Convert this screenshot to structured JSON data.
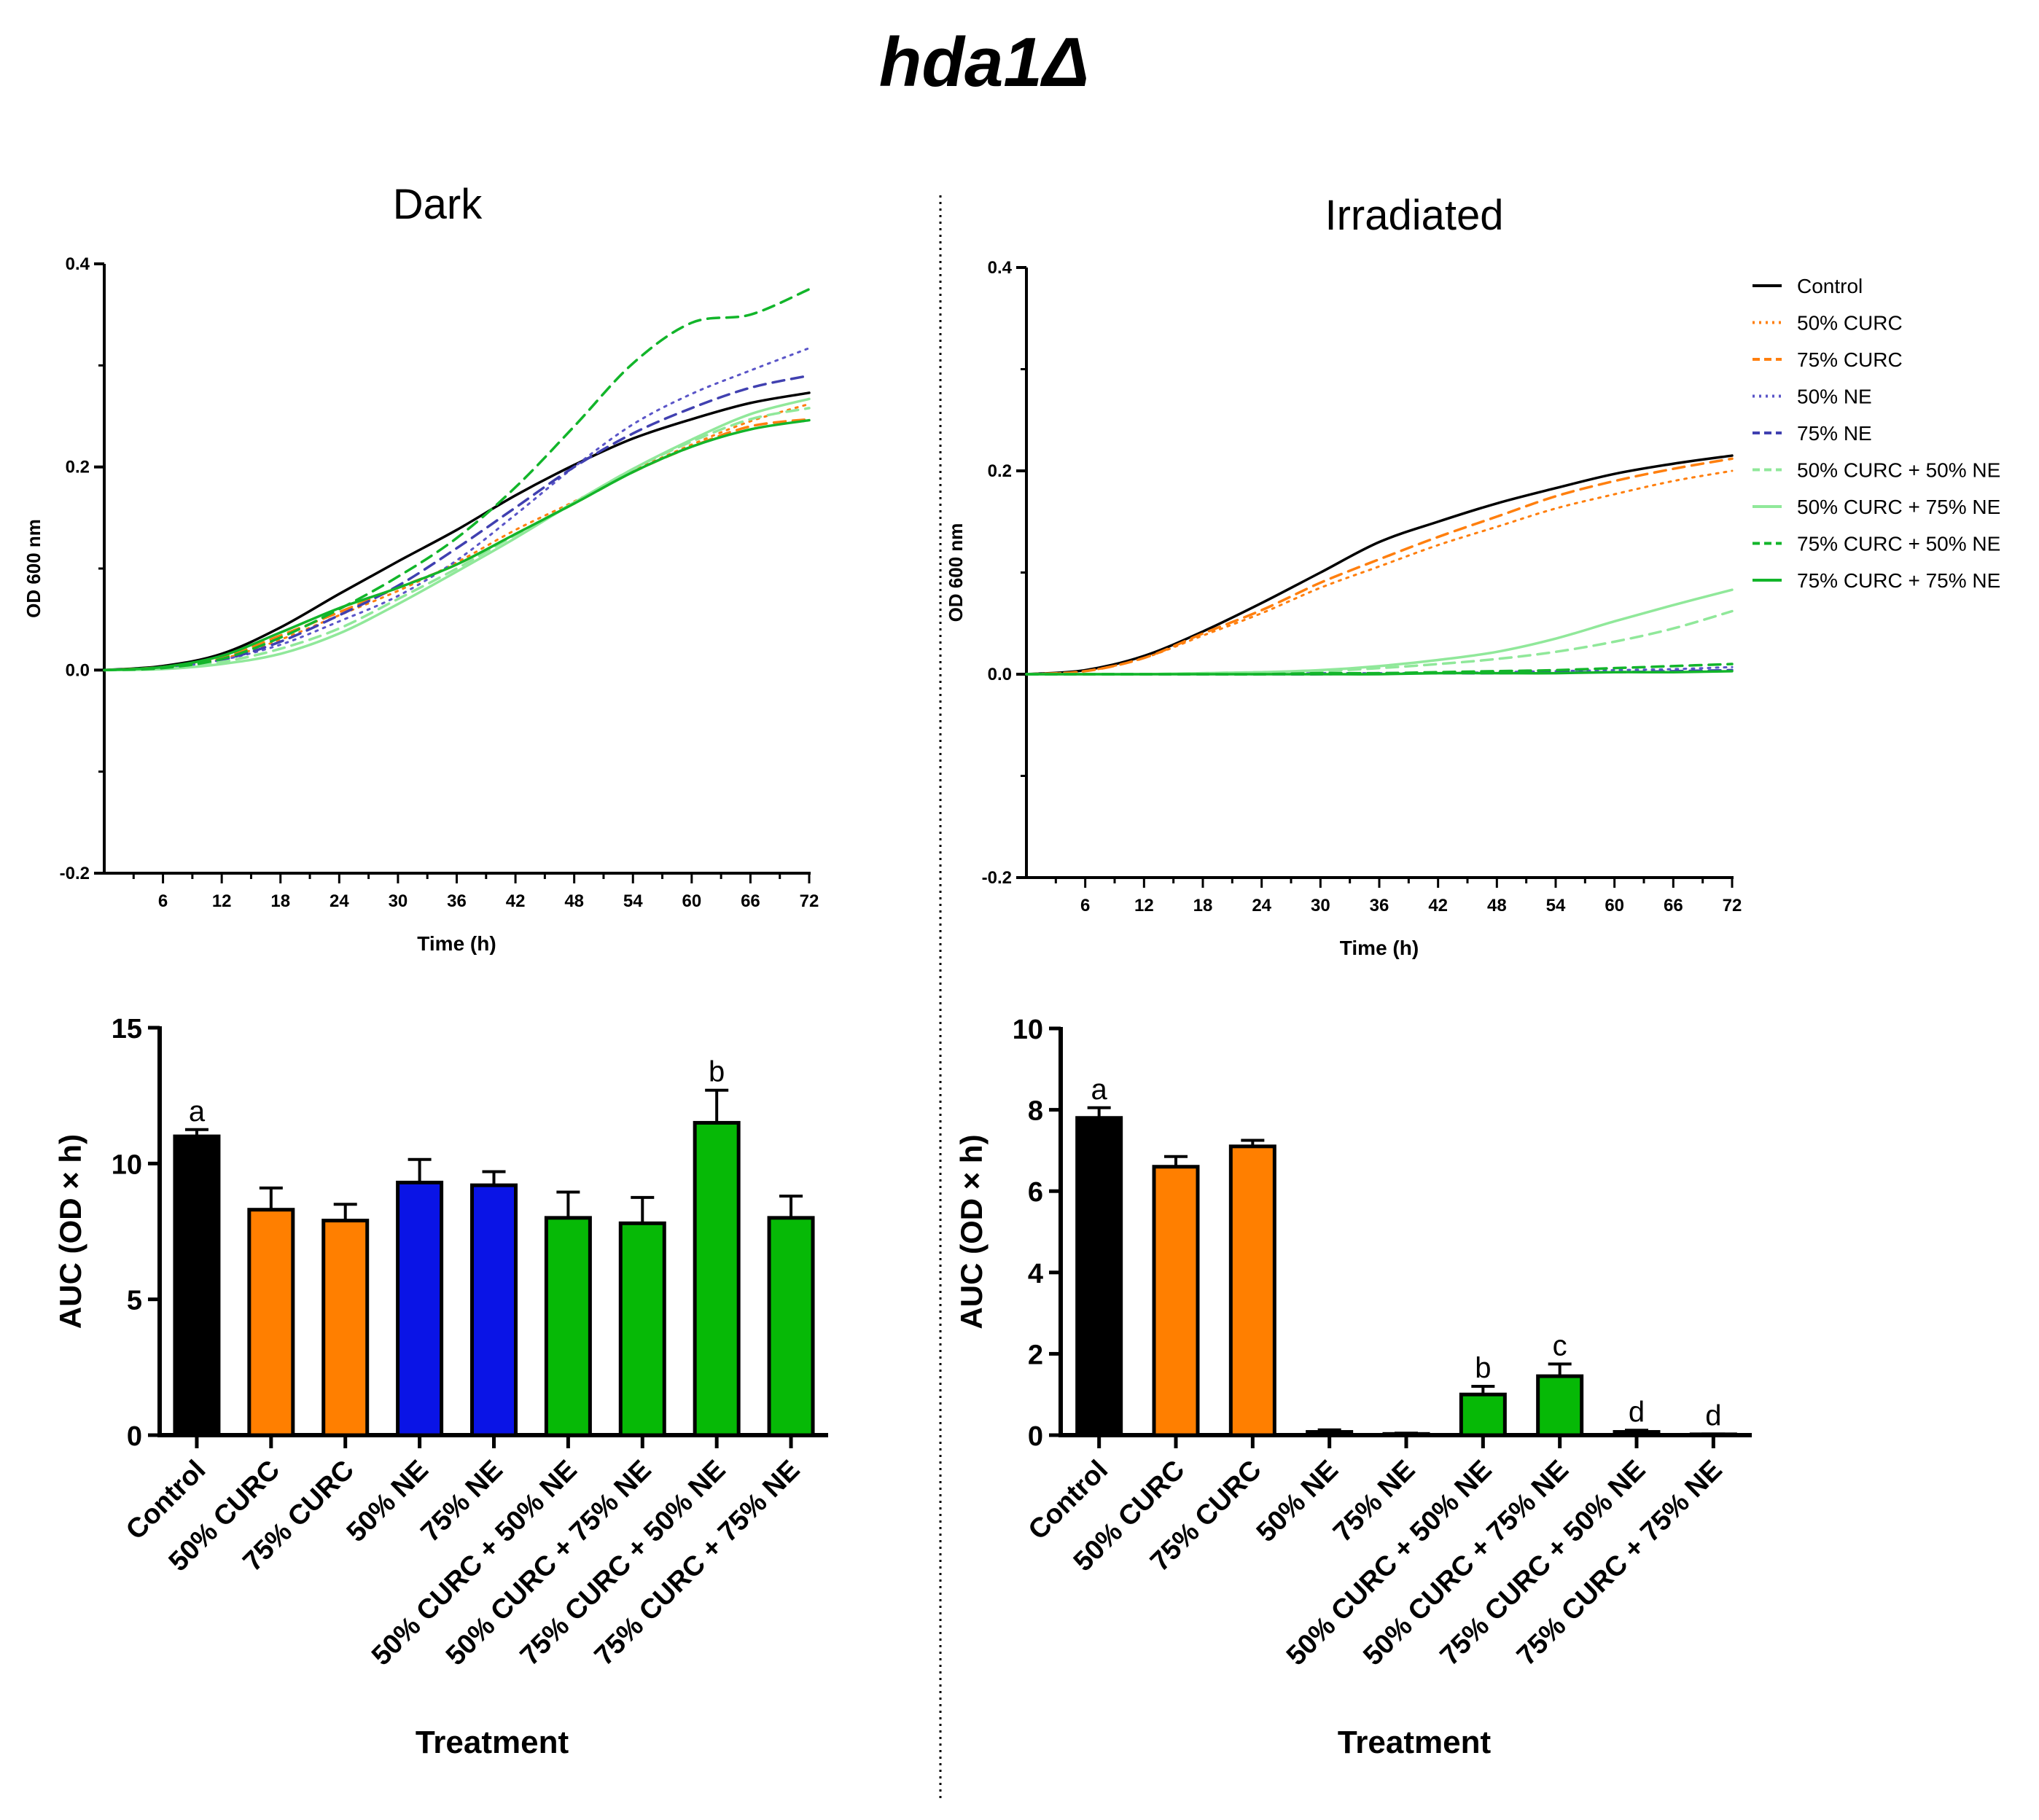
{
  "figure_title": "hda1Δ",
  "colors": {
    "control": "#000000",
    "curc50": "#ff7f0e",
    "curc75": "#ff7f0e",
    "ne50": "#5a55c8",
    "ne75": "#4040b0",
    "c50ne50": "#90e89a",
    "c50ne75": "#90e89a",
    "c75ne50": "#12b52a",
    "c75ne75": "#12b52a",
    "bar_control": "#000000",
    "bar_curc": "#ff7f00",
    "bar_ne": "#0a14e6",
    "bar_combo": "#06b906"
  },
  "legend": [
    "Control",
    "50% CURC",
    "75% CURC",
    "50% NE",
    "75% NE",
    "50% CURC + 50% NE",
    "50% CURC + 75% NE",
    "75% CURC + 50% NE",
    "75% CURC + 75% NE"
  ],
  "chart_data": [
    {
      "id": "dark_curves",
      "type": "line",
      "title": "Dark",
      "xlabel": "Time (h)",
      "ylabel": "OD 600 nm",
      "xlim": [
        0,
        72
      ],
      "ylim": [
        -0.2,
        0.4
      ],
      "xticks": [
        "6",
        "12",
        "18",
        "24",
        "30",
        "36",
        "42",
        "48",
        "54",
        "60",
        "66",
        "72"
      ],
      "yticks": [
        "-0.2",
        "0.0",
        "0.2",
        "0.4"
      ],
      "x": [
        0,
        6,
        12,
        18,
        24,
        30,
        36,
        42,
        48,
        54,
        60,
        66,
        72
      ],
      "series": [
        {
          "name": "Control",
          "style": "solid",
          "values": [
            0,
            0.004,
            0.016,
            0.042,
            0.075,
            0.107,
            0.138,
            0.172,
            0.202,
            0.228,
            0.247,
            0.263,
            0.273
          ]
        },
        {
          "name": "50% CURC",
          "style": "dotted",
          "values": [
            0,
            0.003,
            0.011,
            0.03,
            0.054,
            0.078,
            0.106,
            0.138,
            0.166,
            0.196,
            0.222,
            0.245,
            0.262
          ]
        },
        {
          "name": "75% CURC",
          "style": "dashed",
          "values": [
            0,
            0.003,
            0.012,
            0.034,
            0.057,
            0.081,
            0.104,
            0.134,
            0.164,
            0.195,
            0.22,
            0.24,
            0.247
          ]
        },
        {
          "name": "50% NE",
          "style": "dotted",
          "values": [
            0,
            0.002,
            0.01,
            0.025,
            0.048,
            0.073,
            0.108,
            0.153,
            0.2,
            0.242,
            0.272,
            0.295,
            0.317
          ]
        },
        {
          "name": "75% NE",
          "style": "dashed",
          "values": [
            0,
            0.002,
            0.01,
            0.028,
            0.054,
            0.083,
            0.12,
            0.16,
            0.2,
            0.233,
            0.258,
            0.278,
            0.29
          ]
        },
        {
          "name": "50% CURC + 50% NE",
          "style": "dashed",
          "values": [
            0,
            0.002,
            0.008,
            0.021,
            0.041,
            0.07,
            0.1,
            0.133,
            0.165,
            0.198,
            0.225,
            0.247,
            0.258
          ]
        },
        {
          "name": "50% CURC + 75% NE",
          "style": "solid",
          "values": [
            0,
            0.001,
            0.006,
            0.016,
            0.036,
            0.065,
            0.097,
            0.13,
            0.165,
            0.198,
            0.227,
            0.252,
            0.267
          ]
        },
        {
          "name": "75% CURC + 50% NE",
          "style": "dashed",
          "values": [
            0,
            0.002,
            0.011,
            0.032,
            0.06,
            0.092,
            0.13,
            0.18,
            0.24,
            0.302,
            0.342,
            0.35,
            0.375
          ]
        },
        {
          "name": "75% CURC + 75% NE",
          "style": "solid",
          "values": [
            0,
            0.003,
            0.014,
            0.037,
            0.061,
            0.081,
            0.104,
            0.134,
            0.164,
            0.195,
            0.22,
            0.237,
            0.246
          ]
        }
      ]
    },
    {
      "id": "irr_curves",
      "type": "line",
      "title": "Irradiated",
      "xlabel": "Time (h)",
      "ylabel": "OD 600 nm",
      "xlim": [
        0,
        72
      ],
      "ylim": [
        -0.2,
        0.4
      ],
      "xticks": [
        "6",
        "12",
        "18",
        "24",
        "30",
        "36",
        "42",
        "48",
        "54",
        "60",
        "66",
        "72"
      ],
      "yticks": [
        "-0.2",
        "0.0",
        "0.2",
        "0.4"
      ],
      "x": [
        0,
        6,
        12,
        18,
        24,
        30,
        36,
        42,
        48,
        54,
        60,
        66,
        72
      ],
      "series": [
        {
          "name": "Control",
          "style": "solid",
          "values": [
            0,
            0.004,
            0.018,
            0.042,
            0.07,
            0.1,
            0.13,
            0.15,
            0.168,
            0.183,
            0.197,
            0.207,
            0.215
          ]
        },
        {
          "name": "50% CURC",
          "style": "dotted",
          "values": [
            0,
            0.003,
            0.016,
            0.038,
            0.06,
            0.085,
            0.106,
            0.127,
            0.145,
            0.163,
            0.177,
            0.19,
            0.2
          ]
        },
        {
          "name": "75% CURC",
          "style": "dashed",
          "values": [
            0,
            0.003,
            0.016,
            0.04,
            0.063,
            0.09,
            0.113,
            0.135,
            0.155,
            0.175,
            0.19,
            0.202,
            0.212
          ]
        },
        {
          "name": "50% NE",
          "style": "dotted",
          "values": [
            0,
            0,
            0,
            0,
            0,
            0.001,
            0.001,
            0.001,
            0.002,
            0.003,
            0.004,
            0.005,
            0.007
          ]
        },
        {
          "name": "75% NE",
          "style": "dashed",
          "values": [
            0,
            0,
            0,
            0,
            0,
            0,
            0.001,
            0.001,
            0.001,
            0.002,
            0.002,
            0.003,
            0.004
          ]
        },
        {
          "name": "50% CURC + 50% NE",
          "style": "dashed",
          "values": [
            0,
            0,
            0,
            0.001,
            0.002,
            0.003,
            0.006,
            0.01,
            0.015,
            0.022,
            0.032,
            0.045,
            0.062
          ]
        },
        {
          "name": "50% CURC + 75% NE",
          "style": "solid",
          "values": [
            0,
            0,
            0,
            0.001,
            0.002,
            0.004,
            0.008,
            0.014,
            0.022,
            0.035,
            0.052,
            0.068,
            0.083
          ]
        },
        {
          "name": "75% CURC + 50% NE",
          "style": "dashed",
          "values": [
            0,
            0,
            0,
            0,
            0,
            0.001,
            0.001,
            0.002,
            0.003,
            0.004,
            0.006,
            0.008,
            0.01
          ]
        },
        {
          "name": "75% CURC + 75% NE",
          "style": "solid",
          "values": [
            0,
            0,
            0,
            0,
            0,
            0,
            0,
            0.001,
            0.001,
            0.001,
            0.002,
            0.002,
            0.003
          ]
        }
      ]
    },
    {
      "id": "dark_bars",
      "type": "bar",
      "xlabel": "Treatment",
      "ylabel": "AUC (OD × h)",
      "ylim": [
        0,
        15
      ],
      "yticks": [
        "0",
        "5",
        "10",
        "15"
      ],
      "categories": [
        "Control",
        "50% CURC",
        "75% CURC",
        "50% NE",
        "75% NE",
        "50% CURC + 50% NE",
        "50% CURC + 75% NE",
        "75% CURC + 50% NE",
        "75% CURC + 75% NE"
      ],
      "values": [
        11.0,
        8.3,
        7.9,
        9.3,
        9.2,
        8.0,
        7.8,
        11.5,
        8.0
      ],
      "errors": [
        0.25,
        0.8,
        0.6,
        0.85,
        0.5,
        0.95,
        0.95,
        1.2,
        0.8
      ],
      "letters": [
        "a",
        "",
        "",
        "",
        "",
        "",
        "",
        "b",
        ""
      ]
    },
    {
      "id": "irr_bars",
      "type": "bar",
      "xlabel": "Treatment",
      "ylabel": "AUC (OD × h)",
      "ylim": [
        0,
        10
      ],
      "yticks": [
        "0",
        "2",
        "4",
        "6",
        "8",
        "10"
      ],
      "categories": [
        "Control",
        "50% CURC",
        "75% CURC",
        "50% NE",
        "75% NE",
        "50% CURC + 50% NE",
        "50% CURC + 75% NE",
        "75% CURC + 50% NE",
        "75% CURC + 75% NE"
      ],
      "values": [
        7.8,
        6.6,
        7.1,
        0.08,
        0.03,
        1.0,
        1.45,
        0.08,
        0.02
      ],
      "errors": [
        0.25,
        0.25,
        0.15,
        0.05,
        0.02,
        0.2,
        0.3,
        0.04,
        0.01
      ],
      "letters": [
        "a",
        "",
        "",
        "",
        "",
        "b",
        "c",
        "d",
        "d"
      ]
    }
  ]
}
